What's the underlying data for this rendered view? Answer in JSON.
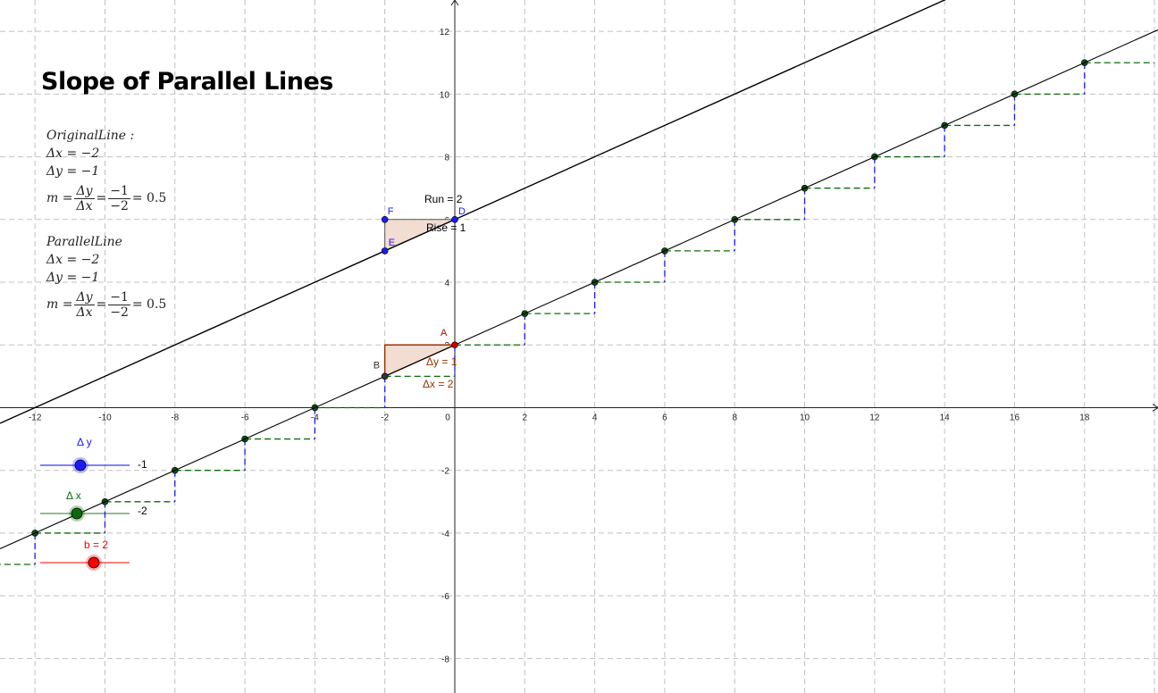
{
  "title": "Slope of Parallel Lines",
  "original_block": {
    "heading": "OriginalLine :",
    "dx_line": "Δx = −2",
    "dy_line": "Δy = −1",
    "m_prefix": "m =",
    "frac1_num": "Δy",
    "frac1_den": "Δx",
    "frac2_num": "−1",
    "frac2_den": "−2",
    "m_result": "= 0.5"
  },
  "parallel_block": {
    "heading": "ParallelLine",
    "dx_line": "Δx = −2",
    "dy_line": "Δy = −1",
    "m_prefix": "m =",
    "frac1_num": "Δy",
    "frac1_den": "Δx",
    "frac2_num": "−1",
    "frac2_den": "−2",
    "m_result": "= 0.5"
  },
  "axes": {
    "x_ticks": [
      -12,
      -10,
      -8,
      -6,
      -4,
      -2,
      0,
      2,
      4,
      6,
      8,
      10,
      12,
      14,
      16,
      18
    ],
    "y_ticks": [
      -8,
      -6,
      -4,
      -2,
      2,
      4,
      6,
      8,
      10,
      12
    ],
    "xlim": [
      -13.0,
      20.1
    ],
    "ylim": [
      -9.1,
      13.0
    ],
    "grid": true
  },
  "lines": {
    "original": {
      "slope": 0.5,
      "intercept": 2
    },
    "parallel": {
      "slope": 0.5,
      "intercept": 6
    }
  },
  "points": [
    {
      "name": "A",
      "x": 0,
      "y": 2,
      "color": "#cc0000"
    },
    {
      "name": "B",
      "x": -2,
      "y": 1,
      "color": "#333333"
    },
    {
      "name": "D",
      "x": 0,
      "y": 6,
      "color": "#1a1aff"
    },
    {
      "name": "E",
      "x": -2,
      "y": 5,
      "color": "#1a1aff"
    },
    {
      "name": "F",
      "x": -2,
      "y": 6,
      "color": "#1a1aff"
    }
  ],
  "labels": {
    "run": "Run = 2",
    "rise": "Rise = 1",
    "dy_label": "Δy = 1",
    "dx_label": "Δx = 2"
  },
  "sliders": {
    "dy": {
      "label": "Δ y",
      "value": "-1",
      "color": "#1a1aff"
    },
    "dx": {
      "label": "Δ x",
      "value": "-2",
      "color": "#0d6b0d"
    },
    "b": {
      "label": "b = 2",
      "color": "#ff0000"
    }
  },
  "colors": {
    "grid": "#c0c0c0",
    "step_horizontal": "#0d6b0d",
    "step_vertical": "#1a1aff",
    "triangle_fill": "#f2ddd3",
    "triangle_edge": "#993300",
    "point_dark": "#0d4d0d"
  }
}
